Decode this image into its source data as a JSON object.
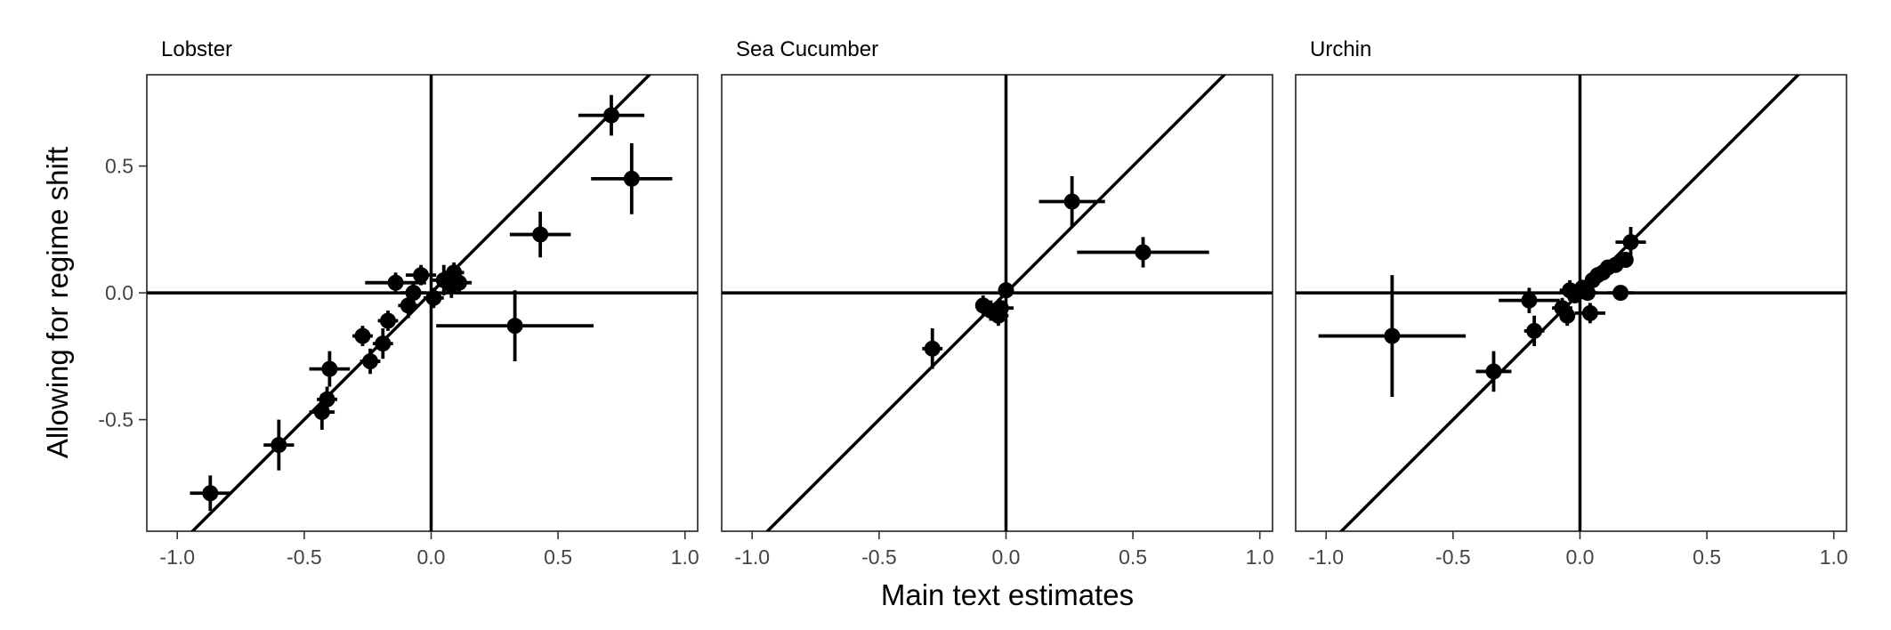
{
  "figure": {
    "xlabel": "Main text estimates",
    "ylabel": "Allowing for regime shift"
  },
  "chart_data": [
    {
      "type": "scatter",
      "title": "Lobster",
      "xlim": [
        -1.12,
        1.05
      ],
      "ylim": [
        -0.94,
        0.86
      ],
      "xticks": [
        -1.0,
        -0.5,
        0.0,
        0.5,
        1.0
      ],
      "xtick_labels": [
        "-1.0",
        "-0.5",
        "0.0",
        "0.5",
        "1.0"
      ],
      "yticks": [
        -0.5,
        0.0,
        0.5
      ],
      "ytick_labels": [
        "-0.5",
        "0.0",
        "0.5"
      ],
      "reference_lines": [
        "x = 0",
        "y = 0",
        "y = x"
      ],
      "error_bars": "horizontal and vertical",
      "points": [
        {
          "x": -0.87,
          "y": -0.79,
          "xerr": 0.08,
          "yerr": 0.07
        },
        {
          "x": -0.6,
          "y": -0.6,
          "xerr": 0.06,
          "yerr": 0.1
        },
        {
          "x": -0.43,
          "y": -0.47,
          "xerr": 0.05,
          "yerr": 0.07
        },
        {
          "x": -0.41,
          "y": -0.42,
          "xerr": 0.04,
          "yerr": 0.05
        },
        {
          "x": -0.4,
          "y": -0.3,
          "xerr": 0.08,
          "yerr": 0.07
        },
        {
          "x": -0.24,
          "y": -0.27,
          "xerr": 0.04,
          "yerr": 0.05
        },
        {
          "x": -0.27,
          "y": -0.17,
          "xerr": 0.04,
          "yerr": 0.04
        },
        {
          "x": -0.19,
          "y": -0.2,
          "xerr": 0.04,
          "yerr": 0.06
        },
        {
          "x": -0.17,
          "y": -0.11,
          "xerr": 0.04,
          "yerr": 0.04
        },
        {
          "x": -0.14,
          "y": 0.04,
          "xerr": 0.12,
          "yerr": 0.04
        },
        {
          "x": -0.09,
          "y": -0.05,
          "xerr": 0.04,
          "yerr": 0.05
        },
        {
          "x": -0.07,
          "y": 0.0,
          "xerr": 0.05,
          "yerr": 0.04
        },
        {
          "x": -0.04,
          "y": 0.07,
          "xerr": 0.06,
          "yerr": 0.04
        },
        {
          "x": 0.01,
          "y": -0.02,
          "xerr": 0.04,
          "yerr": 0.04
        },
        {
          "x": 0.05,
          "y": 0.05,
          "xerr": 0.05,
          "yerr": 0.06
        },
        {
          "x": 0.08,
          "y": 0.03,
          "xerr": 0.04,
          "yerr": 0.05
        },
        {
          "x": 0.09,
          "y": 0.08,
          "xerr": 0.04,
          "yerr": 0.04
        },
        {
          "x": 0.11,
          "y": 0.04,
          "xerr": 0.05,
          "yerr": 0.04
        },
        {
          "x": 0.33,
          "y": -0.13,
          "xerr": 0.31,
          "yerr": 0.14
        },
        {
          "x": 0.43,
          "y": 0.23,
          "xerr": 0.12,
          "yerr": 0.09
        },
        {
          "x": 0.71,
          "y": 0.7,
          "xerr": 0.13,
          "yerr": 0.08
        },
        {
          "x": 0.79,
          "y": 0.45,
          "xerr": 0.16,
          "yerr": 0.14
        }
      ]
    },
    {
      "type": "scatter",
      "title": "Sea Cucumber",
      "xlim": [
        -1.12,
        1.05
      ],
      "ylim": [
        -0.94,
        0.86
      ],
      "xticks": [
        -1.0,
        -0.5,
        0.0,
        0.5,
        1.0
      ],
      "xtick_labels": [
        "-1.0",
        "-0.5",
        "0.0",
        "0.5",
        "1.0"
      ],
      "reference_lines": [
        "x = 0",
        "y = 0",
        "y = x"
      ],
      "error_bars": "horizontal and vertical",
      "points": [
        {
          "x": -0.29,
          "y": -0.22,
          "xerr": 0.04,
          "yerr": 0.08
        },
        {
          "x": -0.09,
          "y": -0.05,
          "xerr": 0.03,
          "yerr": 0.04
        },
        {
          "x": -0.06,
          "y": -0.07,
          "xerr": 0.04,
          "yerr": 0.04
        },
        {
          "x": -0.03,
          "y": -0.09,
          "xerr": 0.04,
          "yerr": 0.04
        },
        {
          "x": -0.02,
          "y": -0.06,
          "xerr": 0.05,
          "yerr": 0.03
        },
        {
          "x": 0.0,
          "y": 0.01,
          "xerr": 0.03,
          "yerr": 0.03
        },
        {
          "x": 0.26,
          "y": 0.36,
          "xerr": 0.13,
          "yerr": 0.1
        },
        {
          "x": 0.54,
          "y": 0.16,
          "xerr": 0.26,
          "yerr": 0.06
        }
      ]
    },
    {
      "type": "scatter",
      "title": "Urchin",
      "xlim": [
        -1.12,
        1.05
      ],
      "ylim": [
        -0.94,
        0.86
      ],
      "xticks": [
        -1.0,
        -0.5,
        0.0,
        0.5,
        1.0
      ],
      "xtick_labels": [
        "-1.0",
        "-0.5",
        "0.0",
        "0.5",
        "1.0"
      ],
      "reference_lines": [
        "x = 0",
        "y = 0",
        "y = x"
      ],
      "error_bars": "horizontal and vertical",
      "points": [
        {
          "x": -0.74,
          "y": -0.17,
          "xerr": 0.29,
          "yerr": 0.24
        },
        {
          "x": -0.34,
          "y": -0.31,
          "xerr": 0.07,
          "yerr": 0.08
        },
        {
          "x": -0.2,
          "y": -0.03,
          "xerr": 0.12,
          "yerr": 0.05
        },
        {
          "x": -0.18,
          "y": -0.15,
          "xerr": 0.04,
          "yerr": 0.06
        },
        {
          "x": -0.07,
          "y": -0.06,
          "xerr": 0.04,
          "yerr": 0.04
        },
        {
          "x": -0.05,
          "y": -0.09,
          "xerr": 0.03,
          "yerr": 0.04
        },
        {
          "x": -0.04,
          "y": 0.01,
          "xerr": 0.04,
          "yerr": 0.04
        },
        {
          "x": -0.02,
          "y": -0.01,
          "xerr": 0.03,
          "yerr": 0.03
        },
        {
          "x": 0.01,
          "y": 0.02,
          "xerr": 0.03,
          "yerr": 0.03
        },
        {
          "x": 0.03,
          "y": 0.0,
          "xerr": 0.04,
          "yerr": 0.03
        },
        {
          "x": 0.04,
          "y": -0.08,
          "xerr": 0.06,
          "yerr": 0.04
        },
        {
          "x": 0.05,
          "y": 0.05,
          "xerr": 0.03,
          "yerr": 0.03
        },
        {
          "x": 0.07,
          "y": 0.07,
          "xerr": 0.03,
          "yerr": 0.03
        },
        {
          "x": 0.09,
          "y": 0.08,
          "xerr": 0.03,
          "yerr": 0.03
        },
        {
          "x": 0.11,
          "y": 0.1,
          "xerr": 0.03,
          "yerr": 0.03
        },
        {
          "x": 0.14,
          "y": 0.11,
          "xerr": 0.03,
          "yerr": 0.03
        },
        {
          "x": 0.16,
          "y": 0.0,
          "xerr": 0.05,
          "yerr": 0.03
        },
        {
          "x": 0.18,
          "y": 0.13,
          "xerr": 0.03,
          "yerr": 0.03
        },
        {
          "x": 0.2,
          "y": 0.2,
          "xerr": 0.06,
          "yerr": 0.06
        }
      ]
    }
  ]
}
